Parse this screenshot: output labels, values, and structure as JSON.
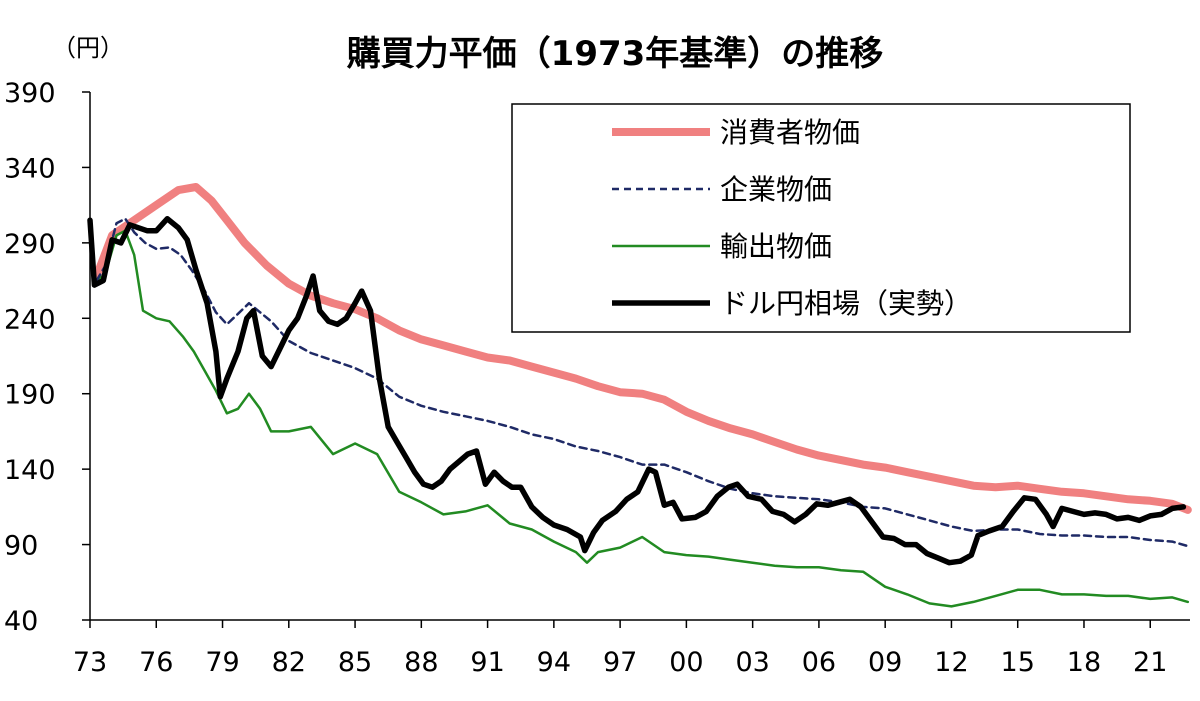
{
  "chart_data": {
    "type": "line",
    "title": "購買力平価（1973年基準）の推移",
    "y_unit": "（円）",
    "ylim": [
      40,
      390
    ],
    "y_ticks": [
      40,
      90,
      140,
      190,
      240,
      290,
      340,
      390
    ],
    "xlim": [
      1973,
      2022.8
    ],
    "x_ticks": [
      {
        "year": 1973,
        "label": "73"
      },
      {
        "year": 1976,
        "label": "76"
      },
      {
        "year": 1979,
        "label": "79"
      },
      {
        "year": 1982,
        "label": "82"
      },
      {
        "year": 1985,
        "label": "85"
      },
      {
        "year": 1988,
        "label": "88"
      },
      {
        "year": 1991,
        "label": "91"
      },
      {
        "year": 1994,
        "label": "94"
      },
      {
        "year": 1997,
        "label": "97"
      },
      {
        "year": 2000,
        "label": "00"
      },
      {
        "year": 2003,
        "label": "03"
      },
      {
        "year": 2006,
        "label": "06"
      },
      {
        "year": 2009,
        "label": "09"
      },
      {
        "year": 2012,
        "label": "12"
      },
      {
        "year": 2015,
        "label": "15"
      },
      {
        "year": 2018,
        "label": "18"
      },
      {
        "year": 2021,
        "label": "21"
      }
    ],
    "legend_position": "top-right",
    "grid": false,
    "series": [
      {
        "name": "消費者物価",
        "color": "#f08080",
        "style": "thick-solid",
        "points": [
          [
            1973.3,
            268
          ],
          [
            1974,
            295
          ],
          [
            1975,
            305
          ],
          [
            1976,
            315
          ],
          [
            1977,
            325
          ],
          [
            1977.8,
            327
          ],
          [
            1978.5,
            318
          ],
          [
            1979.2,
            305
          ],
          [
            1980,
            290
          ],
          [
            1981,
            275
          ],
          [
            1982,
            263
          ],
          [
            1983,
            255
          ],
          [
            1984,
            250
          ],
          [
            1985,
            246
          ],
          [
            1986,
            240
          ],
          [
            1987,
            232
          ],
          [
            1988,
            226
          ],
          [
            1989,
            222
          ],
          [
            1990,
            218
          ],
          [
            1991,
            214
          ],
          [
            1992,
            212
          ],
          [
            1993,
            208
          ],
          [
            1994,
            204
          ],
          [
            1995,
            200
          ],
          [
            1996,
            195
          ],
          [
            1997,
            191
          ],
          [
            1998,
            190
          ],
          [
            1999,
            186
          ],
          [
            2000,
            178
          ],
          [
            2001,
            172
          ],
          [
            2002,
            167
          ],
          [
            2003,
            163
          ],
          [
            2004,
            158
          ],
          [
            2005,
            153
          ],
          [
            2006,
            149
          ],
          [
            2007,
            146
          ],
          [
            2008,
            143
          ],
          [
            2009,
            141
          ],
          [
            2010,
            138
          ],
          [
            2011,
            135
          ],
          [
            2012,
            132
          ],
          [
            2013,
            129
          ],
          [
            2014,
            128
          ],
          [
            2015,
            129
          ],
          [
            2016,
            127
          ],
          [
            2017,
            125
          ],
          [
            2018,
            124
          ],
          [
            2019,
            122
          ],
          [
            2020,
            120
          ],
          [
            2021,
            119
          ],
          [
            2022,
            117
          ],
          [
            2022.7,
            113
          ]
        ]
      },
      {
        "name": "企業物価",
        "color": "#1f2a66",
        "style": "dashed",
        "points": [
          [
            1973.3,
            265
          ],
          [
            1973.7,
            275
          ],
          [
            1974.2,
            303
          ],
          [
            1974.6,
            306
          ],
          [
            1975,
            297
          ],
          [
            1975.5,
            290
          ],
          [
            1976,
            286
          ],
          [
            1976.6,
            287
          ],
          [
            1977.1,
            282
          ],
          [
            1977.6,
            272
          ],
          [
            1978.2,
            258
          ],
          [
            1978.7,
            244
          ],
          [
            1979.2,
            236
          ],
          [
            1979.7,
            243
          ],
          [
            1980.2,
            250
          ],
          [
            1980.7,
            244
          ],
          [
            1981.2,
            238
          ],
          [
            1982,
            225
          ],
          [
            1983,
            217
          ],
          [
            1984,
            212
          ],
          [
            1985,
            207
          ],
          [
            1986,
            200
          ],
          [
            1987,
            188
          ],
          [
            1988,
            182
          ],
          [
            1989,
            178
          ],
          [
            1990,
            175
          ],
          [
            1991,
            172
          ],
          [
            1992,
            168
          ],
          [
            1993,
            163
          ],
          [
            1994,
            160
          ],
          [
            1995,
            155
          ],
          [
            1996,
            152
          ],
          [
            1997,
            148
          ],
          [
            1998,
            143
          ],
          [
            1999,
            143
          ],
          [
            2000,
            138
          ],
          [
            2001,
            132
          ],
          [
            2002,
            127
          ],
          [
            2003,
            124
          ],
          [
            2004,
            122
          ],
          [
            2005,
            121
          ],
          [
            2006,
            120
          ],
          [
            2007,
            118
          ],
          [
            2008,
            115
          ],
          [
            2009,
            114
          ],
          [
            2010,
            110
          ],
          [
            2011,
            106
          ],
          [
            2012,
            102
          ],
          [
            2013,
            99
          ],
          [
            2014,
            100
          ],
          [
            2015,
            100
          ],
          [
            2016,
            97
          ],
          [
            2017,
            96
          ],
          [
            2018,
            96
          ],
          [
            2019,
            95
          ],
          [
            2020,
            95
          ],
          [
            2021,
            93
          ],
          [
            2022,
            92
          ],
          [
            2022.7,
            89
          ]
        ]
      },
      {
        "name": "輸出物価",
        "color": "#228b22",
        "style": "solid",
        "points": [
          [
            1973.3,
            264
          ],
          [
            1973.7,
            270
          ],
          [
            1974.2,
            295
          ],
          [
            1974.6,
            298
          ],
          [
            1975,
            282
          ],
          [
            1975.4,
            245
          ],
          [
            1976,
            240
          ],
          [
            1976.6,
            238
          ],
          [
            1977.2,
            228
          ],
          [
            1977.7,
            218
          ],
          [
            1978.2,
            205
          ],
          [
            1978.7,
            192
          ],
          [
            1979.2,
            177
          ],
          [
            1979.7,
            180
          ],
          [
            1980.2,
            190
          ],
          [
            1980.7,
            180
          ],
          [
            1981.2,
            165
          ],
          [
            1982,
            165
          ],
          [
            1983,
            168
          ],
          [
            1984,
            150
          ],
          [
            1985,
            157
          ],
          [
            1986,
            150
          ],
          [
            1987,
            125
          ],
          [
            1988,
            118
          ],
          [
            1989,
            110
          ],
          [
            1990,
            112
          ],
          [
            1991,
            116
          ],
          [
            1992,
            104
          ],
          [
            1993,
            100
          ],
          [
            1994,
            92
          ],
          [
            1995,
            85
          ],
          [
            1995.5,
            78
          ],
          [
            1996,
            85
          ],
          [
            1997,
            88
          ],
          [
            1998,
            95
          ],
          [
            1999,
            85
          ],
          [
            2000,
            83
          ],
          [
            2001,
            82
          ],
          [
            2002,
            80
          ],
          [
            2003,
            78
          ],
          [
            2004,
            76
          ],
          [
            2005,
            75
          ],
          [
            2006,
            75
          ],
          [
            2007,
            73
          ],
          [
            2008,
            72
          ],
          [
            2009,
            62
          ],
          [
            2010,
            57
          ],
          [
            2011,
            51
          ],
          [
            2012,
            49
          ],
          [
            2013,
            52
          ],
          [
            2014,
            56
          ],
          [
            2015,
            60
          ],
          [
            2016,
            60
          ],
          [
            2017,
            57
          ],
          [
            2018,
            57
          ],
          [
            2019,
            56
          ],
          [
            2020,
            56
          ],
          [
            2021,
            54
          ],
          [
            2022,
            55
          ],
          [
            2022.7,
            52
          ]
        ]
      },
      {
        "name": "ドル円相場（実勢）",
        "color": "#000000",
        "style": "thick-solid",
        "points": [
          [
            1973,
            305
          ],
          [
            1973.2,
            262
          ],
          [
            1973.6,
            265
          ],
          [
            1974,
            292
          ],
          [
            1974.4,
            290
          ],
          [
            1974.8,
            302
          ],
          [
            1975.2,
            300
          ],
          [
            1975.6,
            298
          ],
          [
            1976,
            298
          ],
          [
            1976.5,
            306
          ],
          [
            1977,
            300
          ],
          [
            1977.4,
            292
          ],
          [
            1977.8,
            272
          ],
          [
            1978.3,
            250
          ],
          [
            1978.7,
            218
          ],
          [
            1978.9,
            188
          ],
          [
            1979.2,
            200
          ],
          [
            1979.7,
            218
          ],
          [
            1980.1,
            240
          ],
          [
            1980.4,
            245
          ],
          [
            1980.8,
            215
          ],
          [
            1981.2,
            208
          ],
          [
            1981.6,
            220
          ],
          [
            1982,
            232
          ],
          [
            1982.4,
            240
          ],
          [
            1982.8,
            255
          ],
          [
            1983.1,
            268
          ],
          [
            1983.4,
            245
          ],
          [
            1983.8,
            238
          ],
          [
            1984.2,
            236
          ],
          [
            1984.6,
            240
          ],
          [
            1985,
            250
          ],
          [
            1985.3,
            258
          ],
          [
            1985.7,
            245
          ],
          [
            1986.1,
            200
          ],
          [
            1986.5,
            168
          ],
          [
            1986.9,
            158
          ],
          [
            1987.3,
            148
          ],
          [
            1987.7,
            138
          ],
          [
            1988.1,
            130
          ],
          [
            1988.5,
            128
          ],
          [
            1988.9,
            132
          ],
          [
            1989.3,
            140
          ],
          [
            1989.7,
            145
          ],
          [
            1990.1,
            150
          ],
          [
            1990.5,
            152
          ],
          [
            1990.9,
            130
          ],
          [
            1991.3,
            138
          ],
          [
            1991.7,
            132
          ],
          [
            1992.1,
            128
          ],
          [
            1992.5,
            128
          ],
          [
            1993,
            115
          ],
          [
            1993.5,
            108
          ],
          [
            1994,
            103
          ],
          [
            1994.6,
            100
          ],
          [
            1995.2,
            95
          ],
          [
            1995.4,
            86
          ],
          [
            1995.8,
            98
          ],
          [
            1996.2,
            106
          ],
          [
            1996.8,
            112
          ],
          [
            1997.3,
            120
          ],
          [
            1997.8,
            125
          ],
          [
            1998.3,
            140
          ],
          [
            1998.6,
            138
          ],
          [
            1999.0,
            116
          ],
          [
            1999.4,
            118
          ],
          [
            1999.8,
            107
          ],
          [
            2000.4,
            108
          ],
          [
            2000.9,
            112
          ],
          [
            2001.4,
            122
          ],
          [
            2001.9,
            128
          ],
          [
            2002.3,
            130
          ],
          [
            2002.8,
            122
          ],
          [
            2003.4,
            120
          ],
          [
            2003.9,
            112
          ],
          [
            2004.4,
            110
          ],
          [
            2004.9,
            105
          ],
          [
            2005.4,
            110
          ],
          [
            2005.9,
            117
          ],
          [
            2006.4,
            116
          ],
          [
            2006.9,
            118
          ],
          [
            2007.4,
            120
          ],
          [
            2007.9,
            115
          ],
          [
            2008.4,
            105
          ],
          [
            2008.9,
            95
          ],
          [
            2009.4,
            94
          ],
          [
            2009.9,
            90
          ],
          [
            2010.4,
            90
          ],
          [
            2010.9,
            84
          ],
          [
            2011.4,
            81
          ],
          [
            2011.9,
            78
          ],
          [
            2012.4,
            79
          ],
          [
            2012.9,
            83
          ],
          [
            2013.2,
            96
          ],
          [
            2013.7,
            99
          ],
          [
            2014.3,
            102
          ],
          [
            2014.8,
            112
          ],
          [
            2015.3,
            121
          ],
          [
            2015.8,
            120
          ],
          [
            2016.3,
            110
          ],
          [
            2016.6,
            102
          ],
          [
            2017,
            114
          ],
          [
            2017.5,
            112
          ],
          [
            2018,
            110
          ],
          [
            2018.5,
            111
          ],
          [
            2019,
            110
          ],
          [
            2019.5,
            107
          ],
          [
            2020,
            108
          ],
          [
            2020.5,
            106
          ],
          [
            2021,
            109
          ],
          [
            2021.5,
            110
          ],
          [
            2022.0,
            114
          ],
          [
            2022.5,
            115
          ]
        ]
      }
    ]
  }
}
